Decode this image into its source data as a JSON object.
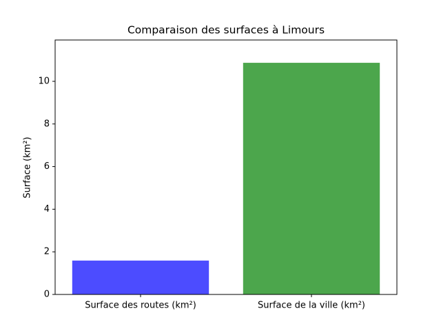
{
  "chart_data": {
    "type": "bar",
    "title": "Comparaison des surfaces à Limours",
    "y_label": "Surface (km²)",
    "categories": [
      "Surface des routes (km²)",
      "Surface de la ville (km²)"
    ],
    "values": [
      1.59,
      10.87
    ],
    "colors": [
      "#4c4cff",
      "#4ca64c"
    ],
    "ylim": [
      0,
      11.94
    ],
    "yticks": [
      0,
      2,
      4,
      6,
      8,
      10
    ],
    "grid": false
  }
}
